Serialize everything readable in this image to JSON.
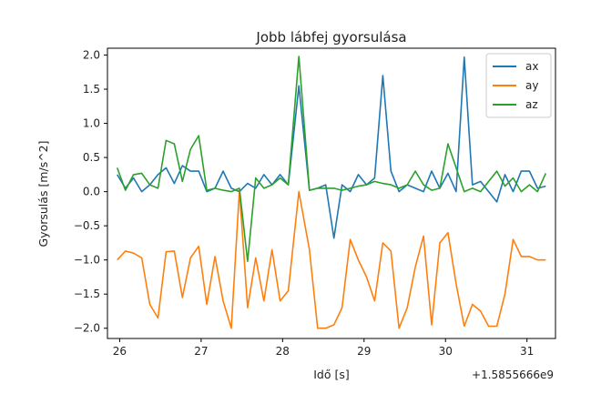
{
  "chart_data": {
    "type": "line",
    "title": "Jobb lábfej gyorsulása",
    "xlabel": "Idő [s]",
    "ylabel": "Gyorsulás [m/s^2]",
    "x_offset_label": "+1.5855666e9",
    "xlim": [
      25.85,
      31.35
    ],
    "ylim": [
      -2.15,
      2.1
    ],
    "xticks": [
      26,
      27,
      28,
      29,
      30,
      31
    ],
    "xtick_labels": [
      "26",
      "27",
      "28",
      "29",
      "30",
      "31"
    ],
    "yticks": [
      -2.0,
      -1.5,
      -1.0,
      -0.5,
      0.0,
      0.5,
      1.0,
      1.5,
      2.0
    ],
    "ytick_labels": [
      "−2.0",
      "−1.5",
      "−1.0",
      "−0.5",
      "0.0",
      "0.5",
      "1.0",
      "1.5",
      "2.0"
    ],
    "grid": false,
    "legend_position": "top-right",
    "x": [
      25.97,
      26.07,
      26.17,
      26.27,
      26.37,
      26.47,
      26.57,
      26.67,
      26.77,
      26.87,
      26.97,
      27.07,
      27.17,
      27.27,
      27.37,
      27.47,
      27.57,
      27.67,
      27.77,
      27.87,
      27.97,
      28.07,
      28.2,
      28.33,
      28.43,
      28.53,
      28.63,
      28.73,
      28.83,
      28.93,
      29.03,
      29.13,
      29.23,
      29.33,
      29.43,
      29.53,
      29.63,
      29.73,
      29.83,
      29.93,
      30.03,
      30.13,
      30.23,
      30.33,
      30.43,
      30.53,
      30.63,
      30.73,
      30.83,
      30.93,
      31.03,
      31.13,
      31.23
    ],
    "series": [
      {
        "name": "ax",
        "color": "#1f77b4",
        "values": [
          0.25,
          0.05,
          0.2,
          0.0,
          0.1,
          0.25,
          0.35,
          0.12,
          0.38,
          0.3,
          0.3,
          0.0,
          0.05,
          0.3,
          0.05,
          0.0,
          0.12,
          0.05,
          0.25,
          0.1,
          0.25,
          0.1,
          1.55,
          0.02,
          0.05,
          0.1,
          -0.68,
          0.1,
          0.0,
          0.25,
          0.1,
          0.2,
          1.7,
          0.3,
          0.0,
          0.1,
          0.05,
          0.0,
          0.3,
          0.05,
          0.27,
          0.0,
          1.97,
          0.1,
          0.15,
          0.0,
          -0.15,
          0.25,
          0.0,
          0.3,
          0.3,
          0.05,
          0.08
        ]
      },
      {
        "name": "ay",
        "color": "#ff7f0e",
        "values": [
          -1.0,
          -0.87,
          -0.9,
          -0.97,
          -1.65,
          -1.85,
          -0.88,
          -0.87,
          -1.55,
          -0.97,
          -0.8,
          -1.65,
          -0.95,
          -1.6,
          -2.0,
          0.02,
          -1.7,
          -0.97,
          -1.6,
          -0.85,
          -1.6,
          -1.45,
          0.0,
          -0.85,
          -2.0,
          -2.0,
          -1.95,
          -1.7,
          -0.7,
          -1.0,
          -1.25,
          -1.6,
          -0.75,
          -0.87,
          -2.0,
          -1.7,
          -1.1,
          -0.65,
          -1.95,
          -0.75,
          -0.6,
          -1.35,
          -1.97,
          -1.65,
          -1.75,
          -1.97,
          -1.97,
          -1.5,
          -0.7,
          -0.95,
          -0.95,
          -1.0,
          -1.0
        ]
      },
      {
        "name": "az",
        "color": "#2ca02c",
        "values": [
          0.35,
          0.02,
          0.25,
          0.27,
          0.1,
          0.05,
          0.75,
          0.7,
          0.15,
          0.62,
          0.82,
          0.02,
          0.05,
          0.02,
          0.0,
          0.05,
          -1.02,
          0.2,
          0.05,
          0.1,
          0.2,
          0.1,
          1.98,
          0.02,
          0.05,
          0.05,
          0.05,
          0.02,
          0.05,
          0.08,
          0.1,
          0.15,
          0.12,
          0.1,
          0.05,
          0.1,
          0.3,
          0.1,
          0.02,
          0.05,
          0.7,
          0.35,
          0.0,
          0.05,
          0.0,
          0.15,
          0.3,
          0.08,
          0.2,
          0.0,
          0.1,
          0.0,
          0.27
        ]
      }
    ]
  }
}
